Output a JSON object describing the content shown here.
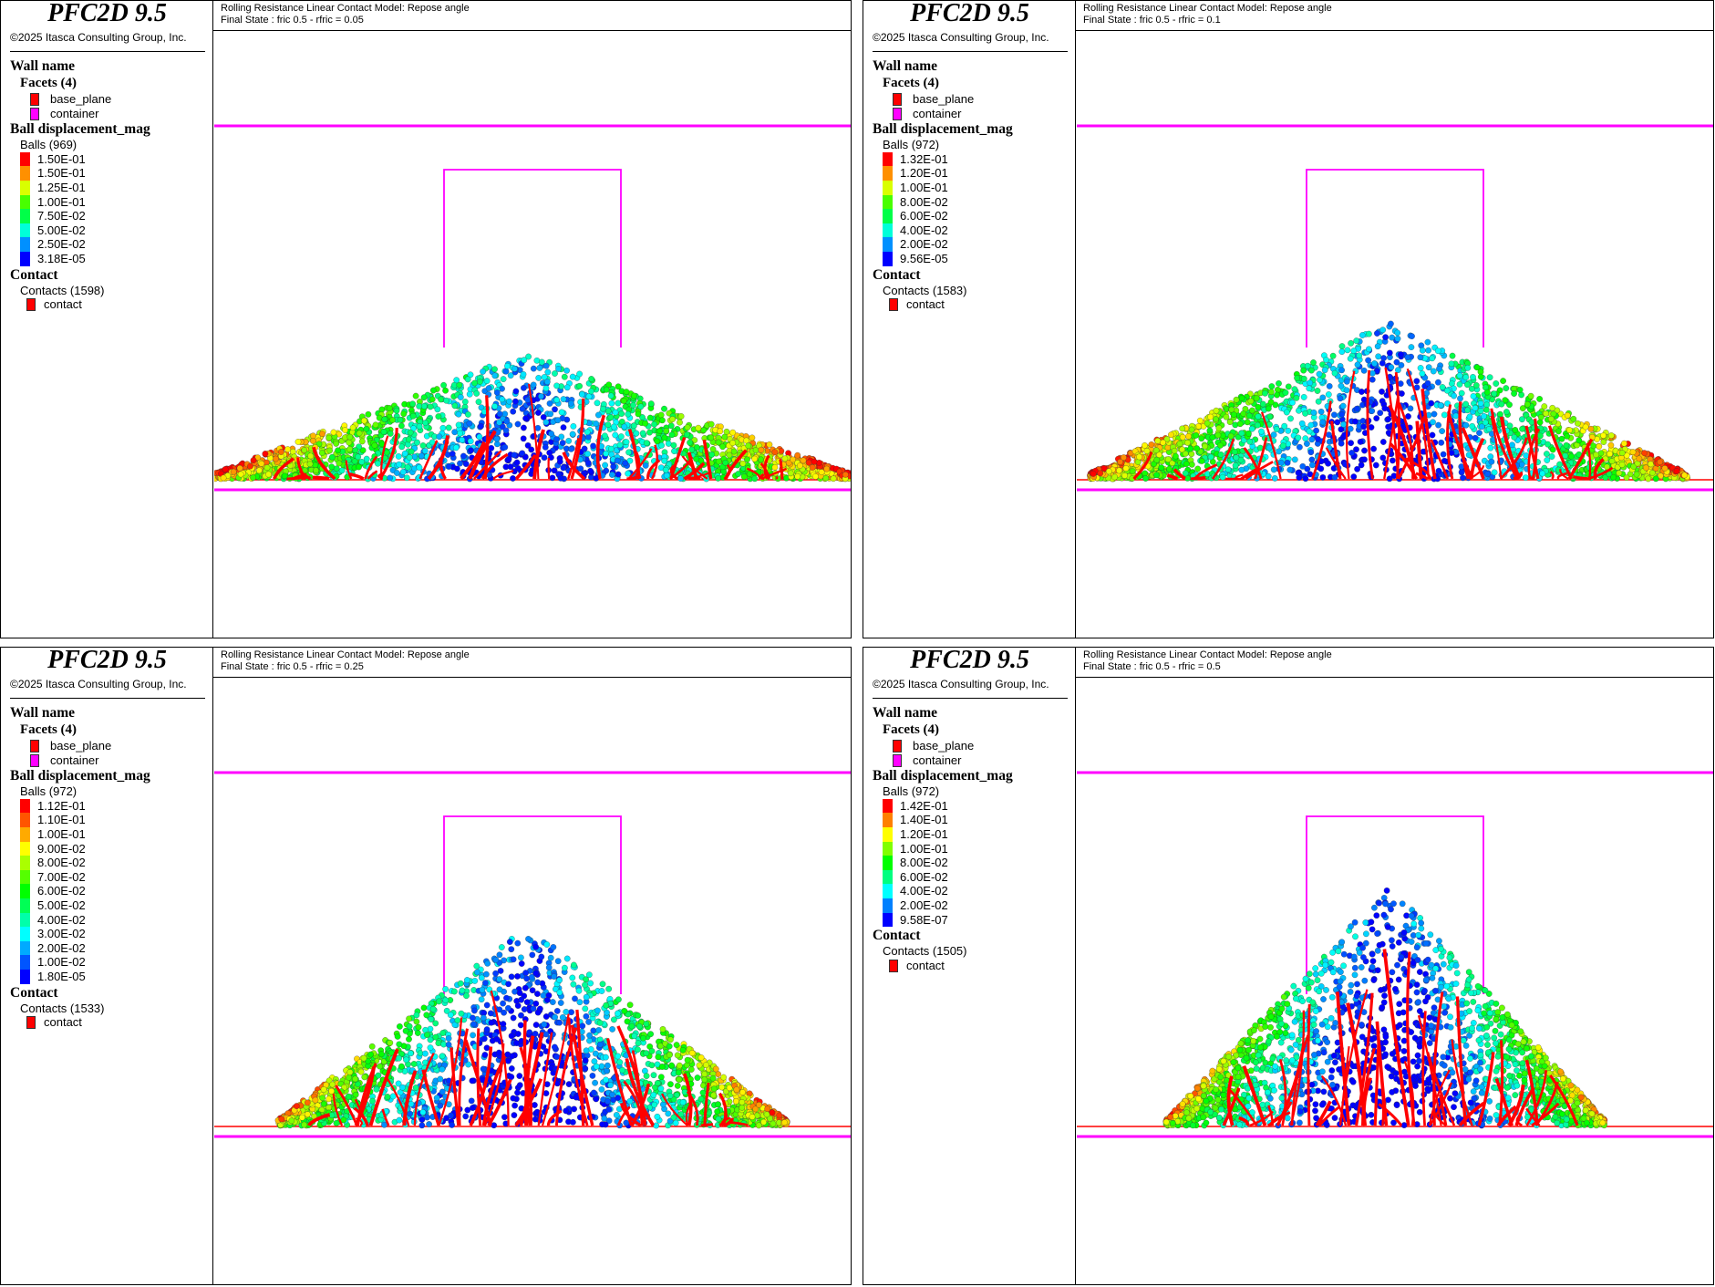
{
  "app": {
    "name": "PFC2D 9.5",
    "copyright": "©2025 Itasca Consulting Group, Inc."
  },
  "colors": {
    "container_wall": "#ff00ff",
    "base_plane": "#ff0000",
    "contact": "#ff0000"
  },
  "panels": [
    {
      "title_line1": "Rolling Resistance Linear Contact Model: Repose angle",
      "title_line2": "Final State : fric 0.5 - rfric = 0.05",
      "wall_heading": "Wall name",
      "facets_label": "Facets (4)",
      "facets": [
        {
          "name": "base_plane",
          "color": "#ff0000"
        },
        {
          "name": "container",
          "color": "#ff00ff"
        }
      ],
      "ball_heading": "Ball displacement_mag",
      "balls_label": "Balls (969)",
      "color_scale": [
        "1.50E-01",
        "1.50E-01",
        "1.25E-01",
        "1.00E-01",
        "7.50E-02",
        "5.00E-02",
        "2.50E-02",
        "3.18E-05"
      ],
      "contact_heading": "Contact",
      "contacts_label": "Contacts (1598)",
      "contact_item": "contact",
      "pile": {
        "left_extent": 0.0,
        "right_extent": 1.0,
        "peak": 0.2
      }
    },
    {
      "title_line1": "Rolling Resistance Linear Contact Model: Repose angle",
      "title_line2": "Final State : fric 0.5 - rfric = 0.1",
      "wall_heading": "Wall name",
      "facets_label": "Facets (4)",
      "facets": [
        {
          "name": "base_plane",
          "color": "#ff0000"
        },
        {
          "name": "container",
          "color": "#ff00ff"
        }
      ],
      "ball_heading": "Ball displacement_mag",
      "balls_label": "Balls (972)",
      "color_scale": [
        "1.32E-01",
        "1.20E-01",
        "1.00E-01",
        "8.00E-02",
        "6.00E-02",
        "4.00E-02",
        "2.00E-02",
        "9.56E-05"
      ],
      "contact_heading": "Contact",
      "contacts_label": "Contacts (1583)",
      "contact_item": "contact",
      "pile": {
        "left_extent": 0.02,
        "right_extent": 0.96,
        "peak": 0.25
      }
    },
    {
      "title_line1": "Rolling Resistance Linear Contact Model: Repose angle",
      "title_line2": "Final State : fric 0.5 - rfric = 0.25",
      "wall_heading": "Wall name",
      "facets_label": "Facets (4)",
      "facets": [
        {
          "name": "base_plane",
          "color": "#ff0000"
        },
        {
          "name": "container",
          "color": "#ff00ff"
        }
      ],
      "ball_heading": "Ball displacement_mag",
      "balls_label": "Balls (972)",
      "color_scale": [
        "1.12E-01",
        "1.10E-01",
        "1.00E-01",
        "9.00E-02",
        "8.00E-02",
        "7.00E-02",
        "6.00E-02",
        "5.00E-02",
        "4.00E-02",
        "3.00E-02",
        "2.00E-02",
        "1.00E-02",
        "1.80E-05"
      ],
      "contact_heading": "Contact",
      "contacts_label": "Contacts (1533)",
      "contact_item": "contact",
      "pile": {
        "left_extent": 0.1,
        "right_extent": 0.9,
        "peak": 0.32
      }
    },
    {
      "title_line1": "Rolling Resistance Linear Contact Model: Repose angle",
      "title_line2": "Final State : fric 0.5 - rfric = 0.5",
      "wall_heading": "Wall name",
      "facets_label": "Facets (4)",
      "facets": [
        {
          "name": "base_plane",
          "color": "#ff0000"
        },
        {
          "name": "container",
          "color": "#ff00ff"
        }
      ],
      "ball_heading": "Ball displacement_mag",
      "balls_label": "Balls (972)",
      "color_scale": [
        "1.42E-01",
        "1.40E-01",
        "1.20E-01",
        "1.00E-01",
        "8.00E-02",
        "6.00E-02",
        "4.00E-02",
        "2.00E-02",
        "9.58E-07"
      ],
      "contact_heading": "Contact",
      "contacts_label": "Contacts (1505)",
      "contact_item": "contact",
      "pile": {
        "left_extent": 0.14,
        "right_extent": 0.83,
        "peak": 0.39
      }
    }
  ]
}
